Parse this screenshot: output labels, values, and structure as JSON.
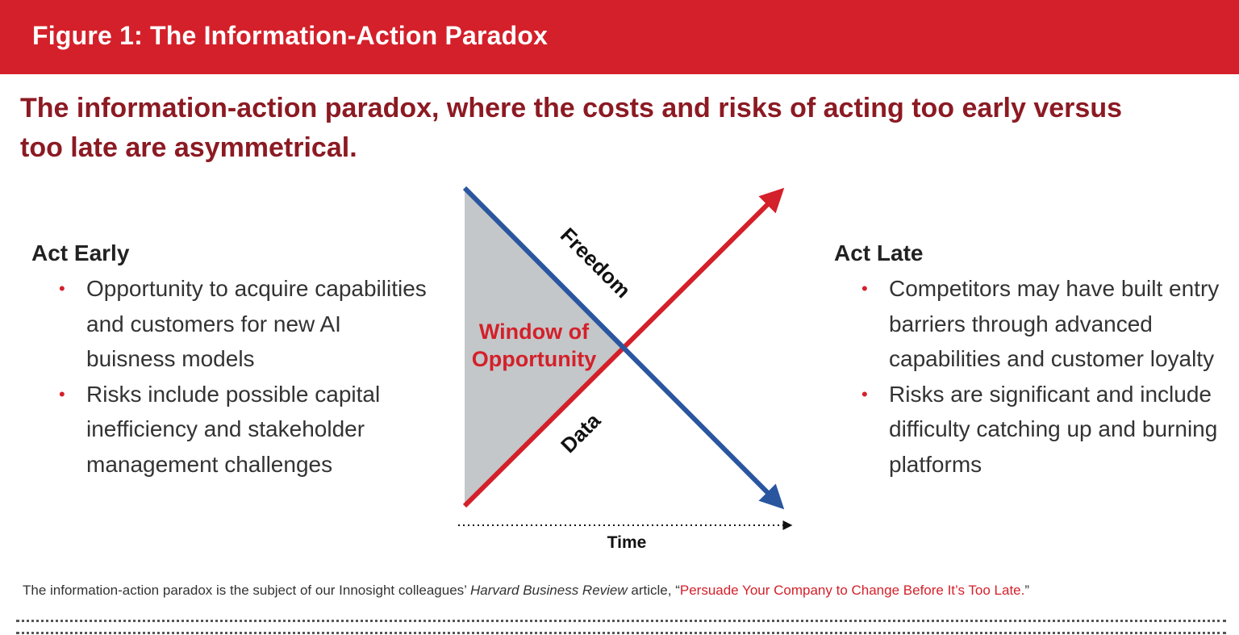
{
  "header": {
    "title": "Figure 1: The Information-Action Paradox"
  },
  "subtitle": "The information-action paradox, where the costs and risks of acting too early versus too late are asymmetrical.",
  "act_early": {
    "heading": "Act Early",
    "bullets": [
      "Opportunity to acquire capabilities and customers for new AI buisness models",
      "Risks include possible capital inefficiency and stakeholder management challenges"
    ]
  },
  "act_late": {
    "heading": "Act Late",
    "bullets": [
      "Competitors may have built entry barriers through advanced capabilities and customer loyalty",
      "Risks are significant and include difficulty catching up and burning platforms"
    ]
  },
  "diagram": {
    "freedom_label": "Freedom",
    "data_label": "Data",
    "window_line1": "Window of",
    "window_line2": "Opportunity",
    "time_label": "Time",
    "colors": {
      "freedom": "#2a56a0",
      "data": "#d4202a",
      "window_fill": "#c3c7c9",
      "window_text": "#d4202a"
    }
  },
  "footnote": {
    "prefix": "The information-action paradox is the subject of our Innosight colleagues’ ",
    "publication": "Harvard Business Review",
    "middle": " article, “",
    "link_text": "Persuade Your Company to Change Before It’s Too Late.",
    "suffix": "”"
  },
  "colors": {
    "banner": "#d4202a",
    "subtitle": "#8c1a23",
    "bullet": "#d4202a"
  }
}
